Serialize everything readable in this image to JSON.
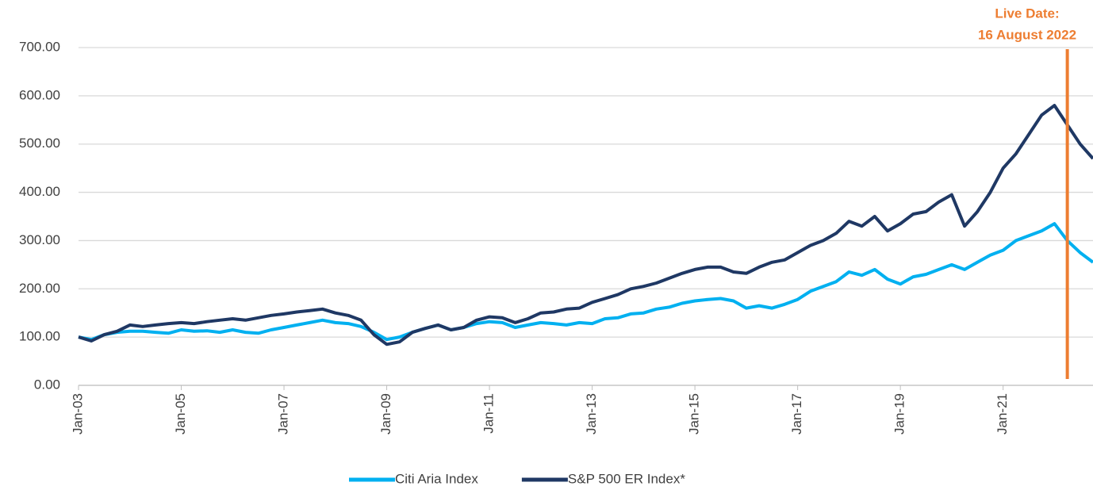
{
  "chart_data": {
    "type": "line",
    "x": [
      "2003-01",
      "2003-04",
      "2003-07",
      "2003-10",
      "2004-01",
      "2004-04",
      "2004-07",
      "2004-10",
      "2005-01",
      "2005-04",
      "2005-07",
      "2005-10",
      "2006-01",
      "2006-04",
      "2006-07",
      "2006-10",
      "2007-01",
      "2007-04",
      "2007-07",
      "2007-10",
      "2008-01",
      "2008-04",
      "2008-07",
      "2008-10",
      "2009-01",
      "2009-04",
      "2009-07",
      "2009-10",
      "2010-01",
      "2010-04",
      "2010-07",
      "2010-10",
      "2011-01",
      "2011-04",
      "2011-07",
      "2011-10",
      "2012-01",
      "2012-04",
      "2012-07",
      "2012-10",
      "2013-01",
      "2013-04",
      "2013-07",
      "2013-10",
      "2014-01",
      "2014-04",
      "2014-07",
      "2014-10",
      "2015-01",
      "2015-04",
      "2015-07",
      "2015-10",
      "2016-01",
      "2016-04",
      "2016-07",
      "2016-10",
      "2017-01",
      "2017-04",
      "2017-07",
      "2017-10",
      "2018-01",
      "2018-04",
      "2018-07",
      "2018-10",
      "2019-01",
      "2019-04",
      "2019-07",
      "2019-10",
      "2020-01",
      "2020-04",
      "2020-07",
      "2020-10",
      "2021-01",
      "2021-04",
      "2021-07",
      "2021-10",
      "2022-01",
      "2022-04",
      "2022-07",
      "2022-10"
    ],
    "series": [
      {
        "name": "Citi Aria Index",
        "color": "#00b0f0",
        "values": [
          100,
          95,
          105,
          110,
          112,
          112,
          110,
          108,
          115,
          112,
          113,
          110,
          115,
          110,
          108,
          115,
          120,
          125,
          130,
          135,
          130,
          128,
          122,
          110,
          95,
          100,
          110,
          118,
          125,
          115,
          120,
          128,
          132,
          130,
          120,
          125,
          130,
          128,
          125,
          130,
          128,
          138,
          140,
          148,
          150,
          158,
          162,
          170,
          175,
          178,
          180,
          175,
          160,
          165,
          160,
          168,
          178,
          195,
          205,
          215,
          235,
          228,
          240,
          220,
          210,
          225,
          230,
          240,
          250,
          240,
          255,
          270,
          280,
          300,
          310,
          320,
          335,
          300,
          275,
          255
        ]
      },
      {
        "name": "S&P 500 ER Index*",
        "color": "#1f3864",
        "values": [
          100,
          92,
          105,
          112,
          125,
          122,
          125,
          128,
          130,
          128,
          132,
          135,
          138,
          135,
          140,
          145,
          148,
          152,
          155,
          158,
          150,
          145,
          135,
          105,
          85,
          90,
          110,
          118,
          125,
          115,
          120,
          135,
          142,
          140,
          130,
          138,
          150,
          152,
          158,
          160,
          172,
          180,
          188,
          200,
          205,
          212,
          222,
          232,
          240,
          245,
          245,
          235,
          232,
          245,
          255,
          260,
          275,
          290,
          300,
          315,
          340,
          330,
          350,
          320,
          335,
          355,
          360,
          380,
          395,
          330,
          360,
          400,
          450,
          480,
          520,
          560,
          580,
          540,
          500,
          470
        ]
      }
    ],
    "xlim": [
      "2003-01",
      "2022-10"
    ],
    "xticks": [
      {
        "value": "2003-01",
        "label": "Jan-03"
      },
      {
        "value": "2005-01",
        "label": "Jan-05"
      },
      {
        "value": "2007-01",
        "label": "Jan-07"
      },
      {
        "value": "2009-01",
        "label": "Jan-09"
      },
      {
        "value": "2011-01",
        "label": "Jan-11"
      },
      {
        "value": "2013-01",
        "label": "Jan-13"
      },
      {
        "value": "2015-01",
        "label": "Jan-15"
      },
      {
        "value": "2017-01",
        "label": "Jan-17"
      },
      {
        "value": "2019-01",
        "label": "Jan-19"
      },
      {
        "value": "2021-01",
        "label": "Jan-21"
      }
    ],
    "ylim": [
      0,
      700
    ],
    "yticks": [
      {
        "value": 0,
        "label": "0.00"
      },
      {
        "value": 100,
        "label": "100.00"
      },
      {
        "value": 200,
        "label": "200.00"
      },
      {
        "value": 300,
        "label": "300.00"
      },
      {
        "value": 400,
        "label": "400.00"
      },
      {
        "value": 500,
        "label": "500.00"
      },
      {
        "value": 600,
        "label": "600.00"
      },
      {
        "value": 700,
        "label": "700.00"
      }
    ],
    "grid": true,
    "legend": "bottom",
    "annotation": {
      "lines": [
        "Live Date:",
        "16 August 2022"
      ],
      "x": "2022-04",
      "color": "#ed7d31"
    }
  }
}
